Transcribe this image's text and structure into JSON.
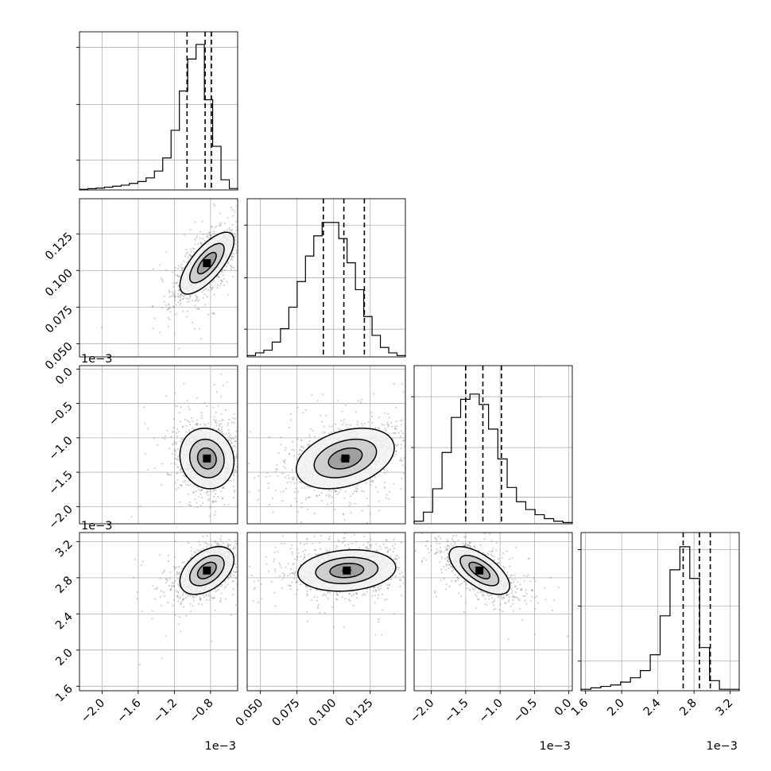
{
  "chart_data": {
    "type": "corner",
    "grid": true,
    "params": [
      {
        "range": [
          -2.25,
          -0.5
        ],
        "ticks": [
          "−2.0",
          "−1.6",
          "−1.2",
          "−0.8"
        ],
        "tick_values": [
          -2.0,
          -1.6,
          -1.2,
          -0.8
        ],
        "offset": "1e−3",
        "quantiles": [
          -1.06,
          -0.86,
          -0.79
        ],
        "mode": -0.82
      },
      {
        "range": [
          0.041,
          0.149
        ],
        "ticks": [
          "0.050",
          "0.075",
          "0.100",
          "0.125"
        ],
        "tick_values": [
          0.05,
          0.075,
          0.1,
          0.125
        ],
        "quantiles": [
          0.093,
          0.107,
          0.121
        ],
        "mode": 0.107
      },
      {
        "range": [
          -2.25,
          0.05
        ],
        "ticks": [
          "−2.0",
          "−1.5",
          "−1.0",
          "−0.5",
          "0.0"
        ],
        "tick_values": [
          -2.0,
          -1.5,
          -1.0,
          -0.5,
          0.0
        ],
        "offset": "1e−3",
        "quantiles": [
          -1.5,
          -1.25,
          -0.98
        ],
        "mode": -1.3
      },
      {
        "range": [
          1.55,
          3.3
        ],
        "ticks": [
          "1.6",
          "2.0",
          "2.4",
          "2.8",
          "3.2"
        ],
        "tick_values": [
          1.6,
          2.0,
          2.4,
          2.8,
          3.2
        ],
        "offset": "1e−3",
        "quantiles": [
          2.68,
          2.86,
          2.98
        ],
        "mode": 2.9
      }
    ],
    "hist_peaks": [
      0.92,
      0.85,
      0.82,
      0.91
    ],
    "hist": [
      [
        0.004,
        0.009,
        0.013,
        0.019,
        0.026,
        0.033,
        0.045,
        0.058,
        0.083,
        0.13,
        0.22,
        0.41,
        0.68,
        0.9,
        1.0,
        0.62,
        0.3,
        0.07,
        0.01
      ],
      [
        0.01,
        0.03,
        0.05,
        0.11,
        0.21,
        0.37,
        0.56,
        0.75,
        0.9,
        1.0,
        1.0,
        0.88,
        0.7,
        0.5,
        0.3,
        0.16,
        0.07,
        0.03,
        0.01
      ],
      [
        0.02,
        0.09,
        0.27,
        0.55,
        0.82,
        0.96,
        1.0,
        0.92,
        0.73,
        0.5,
        0.28,
        0.17,
        0.11,
        0.07,
        0.04,
        0.02,
        0.01
      ],
      [
        0.01,
        0.02,
        0.03,
        0.04,
        0.06,
        0.09,
        0.14,
        0.25,
        0.52,
        0.84,
        1.0,
        0.78,
        0.3,
        0.07,
        0.01,
        0.01
      ]
    ],
    "pairs": [
      {
        "x": 0,
        "y": 1,
        "mean": [
          -0.84,
          0.105
        ],
        "sd": [
          0.17,
          0.012
        ],
        "rho": 0.72
      },
      {
        "x": 0,
        "y": 2,
        "mean": [
          -0.84,
          -1.3
        ],
        "sd": [
          0.17,
          0.25
        ],
        "rho": -0.1
      },
      {
        "x": 1,
        "y": 2,
        "mean": [
          0.108,
          -1.3
        ],
        "sd": [
          0.019,
          0.25
        ],
        "rho": 0.35
      },
      {
        "x": 0,
        "y": 3,
        "mean": [
          -0.84,
          2.88
        ],
        "sd": [
          0.17,
          0.15
        ],
        "rho": 0.45
      },
      {
        "x": 1,
        "y": 3,
        "mean": [
          0.109,
          2.88
        ],
        "sd": [
          0.019,
          0.13
        ],
        "rho": 0.15
      },
      {
        "x": 2,
        "y": 3,
        "mean": [
          -1.3,
          2.88
        ],
        "sd": [
          0.25,
          0.15
        ],
        "rho": -0.65
      }
    ]
  }
}
